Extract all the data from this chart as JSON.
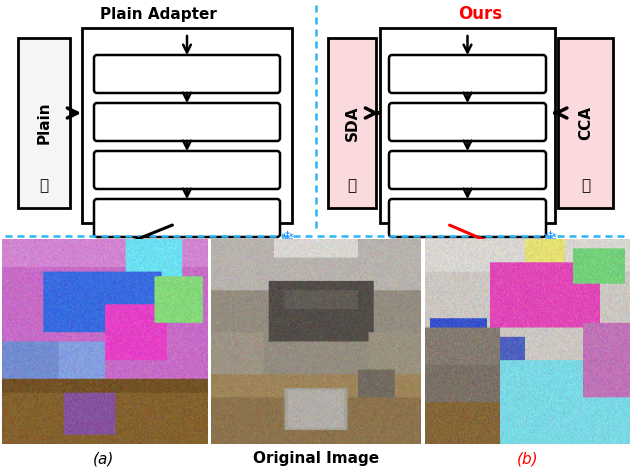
{
  "background_color": "#ffffff",
  "dashed_line_color": "#29b6f6",
  "left_title": "Plain Adapter",
  "right_title": "Ours",
  "right_title_color": "#ff0000",
  "left_box_label": "Plain",
  "left_box_color": "#f5f5f5",
  "right_sda_label": "SDA",
  "right_cca_label": "CCA",
  "right_box_color": "#fadadd",
  "bottom_labels": [
    "(a)",
    "Original Image",
    "(b)"
  ],
  "bottom_b_color": "#ff0000",
  "fig_width": 6.32,
  "fig_height": 4.72,
  "dpi": 100
}
